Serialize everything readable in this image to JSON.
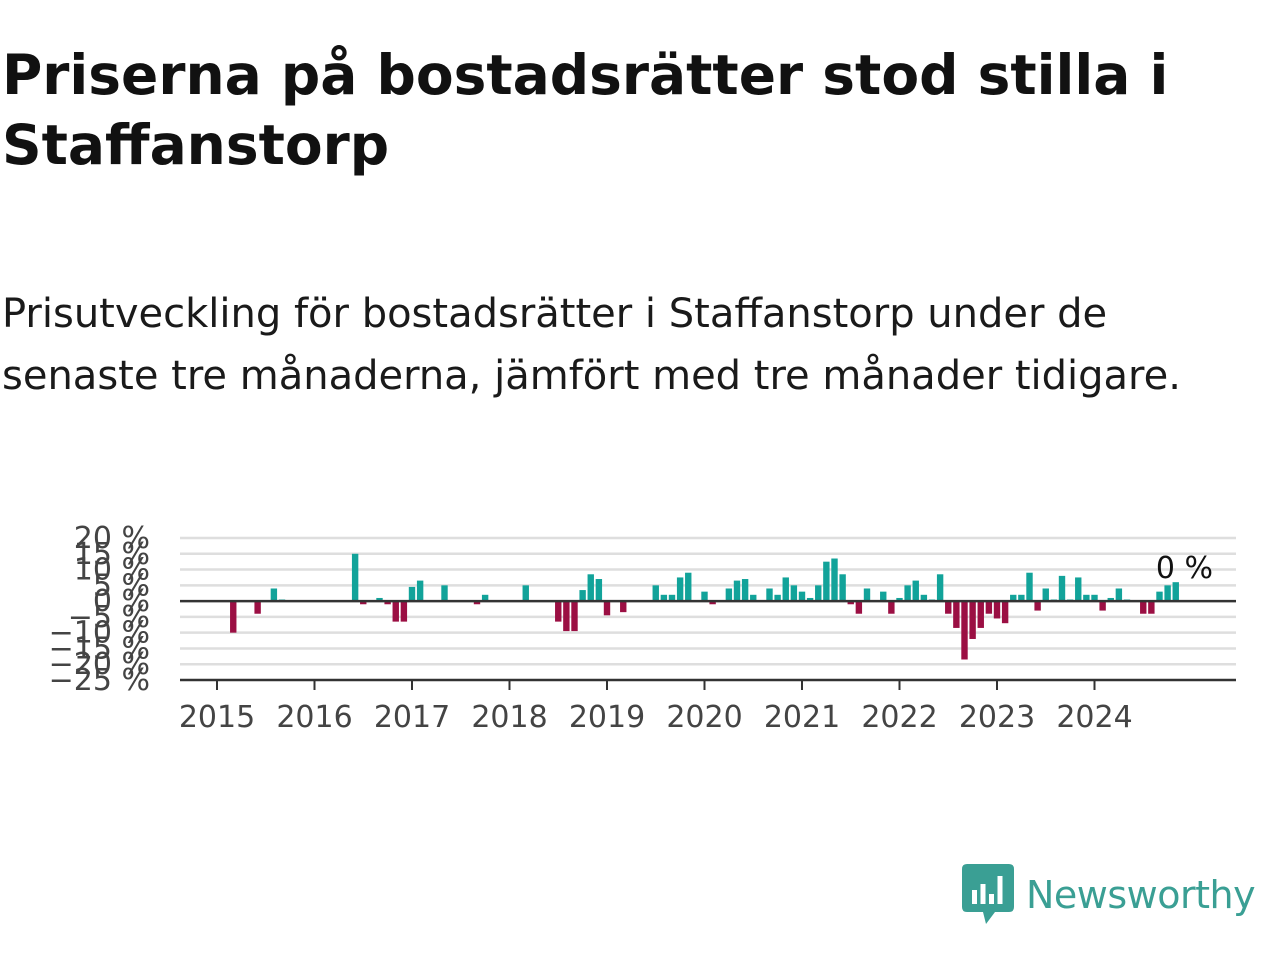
{
  "title": "Priserna på bostadsrätter stod stilla i Staffanstorp",
  "subtitle": "Prisutveckling för bostadsrätter i Staffanstorp under de senaste tre månaderna, jämfört med tre månader tidigare.",
  "brand": {
    "name": "Newsworthy",
    "logo_icon": "newsworthy-bar-chart-logo-icon"
  },
  "colors": {
    "positive": "#12a39a",
    "negative": "#9b0f43",
    "gridline": "#dedede",
    "zero_line": "#333333",
    "axis_text": "#444444",
    "brand": "#3a9f94"
  },
  "chart_data": {
    "type": "bar",
    "title": "",
    "xlabel": "",
    "ylabel": "",
    "ylim": [
      -25,
      20
    ],
    "y_ticks": [
      20,
      15,
      10,
      5,
      0,
      -5,
      -10,
      -15,
      -20,
      -25
    ],
    "y_tick_labels": [
      "20 %",
      "15 %",
      "10 %",
      "5 %",
      "0 %",
      "−5 %",
      "−10 %",
      "−15 %",
      "−20 %",
      "−25 %"
    ],
    "x_ticks": [
      "2015",
      "2016",
      "2017",
      "2018",
      "2019",
      "2020",
      "2021",
      "2022",
      "2023",
      "2024"
    ],
    "x_range": [
      "2015-01",
      "2025-12"
    ],
    "grid": true,
    "last_value_label": "0 %",
    "series": [
      {
        "dates": [
          "2015-03",
          "2015-06",
          "2015-08",
          "2015-09",
          "2016-06",
          "2016-07",
          "2016-09",
          "2016-10",
          "2016-11",
          "2016-12",
          "2017-01",
          "2017-02",
          "2017-05",
          "2017-09",
          "2017-10",
          "2018-03",
          "2018-07",
          "2018-08",
          "2018-09",
          "2018-10",
          "2018-11",
          "2018-12",
          "2019-01",
          "2019-03",
          "2019-07",
          "2019-08",
          "2019-09",
          "2019-10",
          "2019-11",
          "2020-01",
          "2020-02",
          "2020-04",
          "2020-05",
          "2020-06",
          "2020-07",
          "2020-09",
          "2020-10",
          "2020-11",
          "2020-12",
          "2021-01",
          "2021-02",
          "2021-03",
          "2021-04",
          "2021-05",
          "2021-06",
          "2021-07",
          "2021-08",
          "2021-09",
          "2021-11",
          "2021-12",
          "2022-01",
          "2022-02",
          "2022-03",
          "2022-04",
          "2022-05",
          "2022-06",
          "2022-07",
          "2022-08",
          "2022-09",
          "2022-10",
          "2022-11",
          "2022-12",
          "2023-01",
          "2023-02",
          "2023-03",
          "2023-04",
          "2023-05",
          "2023-06",
          "2023-07",
          "2023-08",
          "2023-09",
          "2023-10",
          "2023-11",
          "2023-12",
          "2024-01",
          "2024-02",
          "2024-03",
          "2024-04",
          "2024-05",
          "2024-07",
          "2024-08",
          "2024-09",
          "2024-10",
          "2024-11",
          "2024-12"
        ],
        "values": [
          -10,
          -4,
          4,
          0.5,
          15,
          -1,
          1,
          -1,
          -6.5,
          -6.5,
          4.5,
          6.5,
          5,
          -1,
          2,
          5,
          -6.5,
          -9.5,
          -9.5,
          3.5,
          8.5,
          7,
          -4.5,
          -3.5,
          5,
          2,
          2,
          7.5,
          9,
          3,
          -1,
          4,
          6.5,
          7,
          2,
          4,
          2,
          7.5,
          5,
          3,
          1,
          5,
          12.5,
          13.5,
          8.5,
          -1,
          -4,
          4,
          3,
          -4,
          1,
          5,
          6.5,
          2,
          0.5,
          8.5,
          -4,
          -8.5,
          -18.5,
          -12,
          -8.5,
          -4,
          -5.5,
          -7,
          2,
          2,
          9,
          -3,
          4,
          0.5,
          8,
          0.5,
          7.5,
          2,
          2,
          -3,
          1,
          4,
          0.5,
          -4,
          -4,
          3,
          5,
          6,
          0
        ]
      }
    ]
  }
}
